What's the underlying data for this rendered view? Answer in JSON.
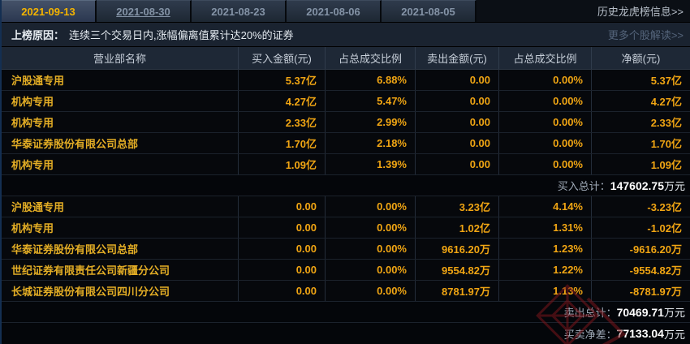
{
  "tabs": [
    {
      "label": "2021-09-13",
      "active": true,
      "underline": false
    },
    {
      "label": "2021-08-30",
      "active": false,
      "underline": true
    },
    {
      "label": "2021-08-23",
      "active": false,
      "underline": false
    },
    {
      "label": "2021-08-06",
      "active": false,
      "underline": false
    },
    {
      "label": "2021-08-05",
      "active": false,
      "underline": false
    }
  ],
  "history_link": "历史龙虎榜信息>>",
  "reason": {
    "label": "上榜原因：",
    "text": "连续三个交易日内,涨幅偏离值累计达20%的证券",
    "more_link": "更多个股解读>>"
  },
  "table": {
    "headers": [
      "营业部名称",
      "买入金额(元)",
      "占总成交比例",
      "卖出金额(元)",
      "占总成交比例",
      "净额(元)"
    ],
    "buy_rows": [
      [
        "沪股通专用",
        "5.37亿",
        "6.88%",
        "0.00",
        "0.00%",
        "5.37亿"
      ],
      [
        "机构专用",
        "4.27亿",
        "5.47%",
        "0.00",
        "0.00%",
        "4.27亿"
      ],
      [
        "机构专用",
        "2.33亿",
        "2.99%",
        "0.00",
        "0.00%",
        "2.33亿"
      ],
      [
        "华泰证券股份有限公司总部",
        "1.70亿",
        "2.18%",
        "0.00",
        "0.00%",
        "1.70亿"
      ],
      [
        "机构专用",
        "1.09亿",
        "1.39%",
        "0.00",
        "0.00%",
        "1.09亿"
      ]
    ],
    "buy_total": {
      "label": "买入总计：",
      "value": "147602.75",
      "unit": "万元"
    },
    "sell_rows": [
      [
        "沪股通专用",
        "0.00",
        "0.00%",
        "3.23亿",
        "4.14%",
        "-3.23亿"
      ],
      [
        "机构专用",
        "0.00",
        "0.00%",
        "1.02亿",
        "1.31%",
        "-1.02亿"
      ],
      [
        "华泰证券股份有限公司总部",
        "0.00",
        "0.00%",
        "9616.20万",
        "1.23%",
        "-9616.20万"
      ],
      [
        "世纪证券有限责任公司新疆分公司",
        "0.00",
        "0.00%",
        "9554.82万",
        "1.22%",
        "-9554.82万"
      ],
      [
        "长城证券股份有限公司四川分公司",
        "0.00",
        "0.00%",
        "8781.97万",
        "1.13%",
        "-8781.97万"
      ]
    ],
    "sell_total": {
      "label": "卖出总计：",
      "value": "70469.71",
      "unit": "万元"
    },
    "net_total": {
      "label": "买卖净差：",
      "value": "77133.04",
      "unit": "万元"
    }
  },
  "colors": {
    "accent_yellow": "#f5b400",
    "value_amber": "#f0a513",
    "name_gold": "#e3ad25",
    "header_bg": "#1e2836",
    "tab_active_bg": "#455268",
    "watermark_red": "#7a161c"
  }
}
